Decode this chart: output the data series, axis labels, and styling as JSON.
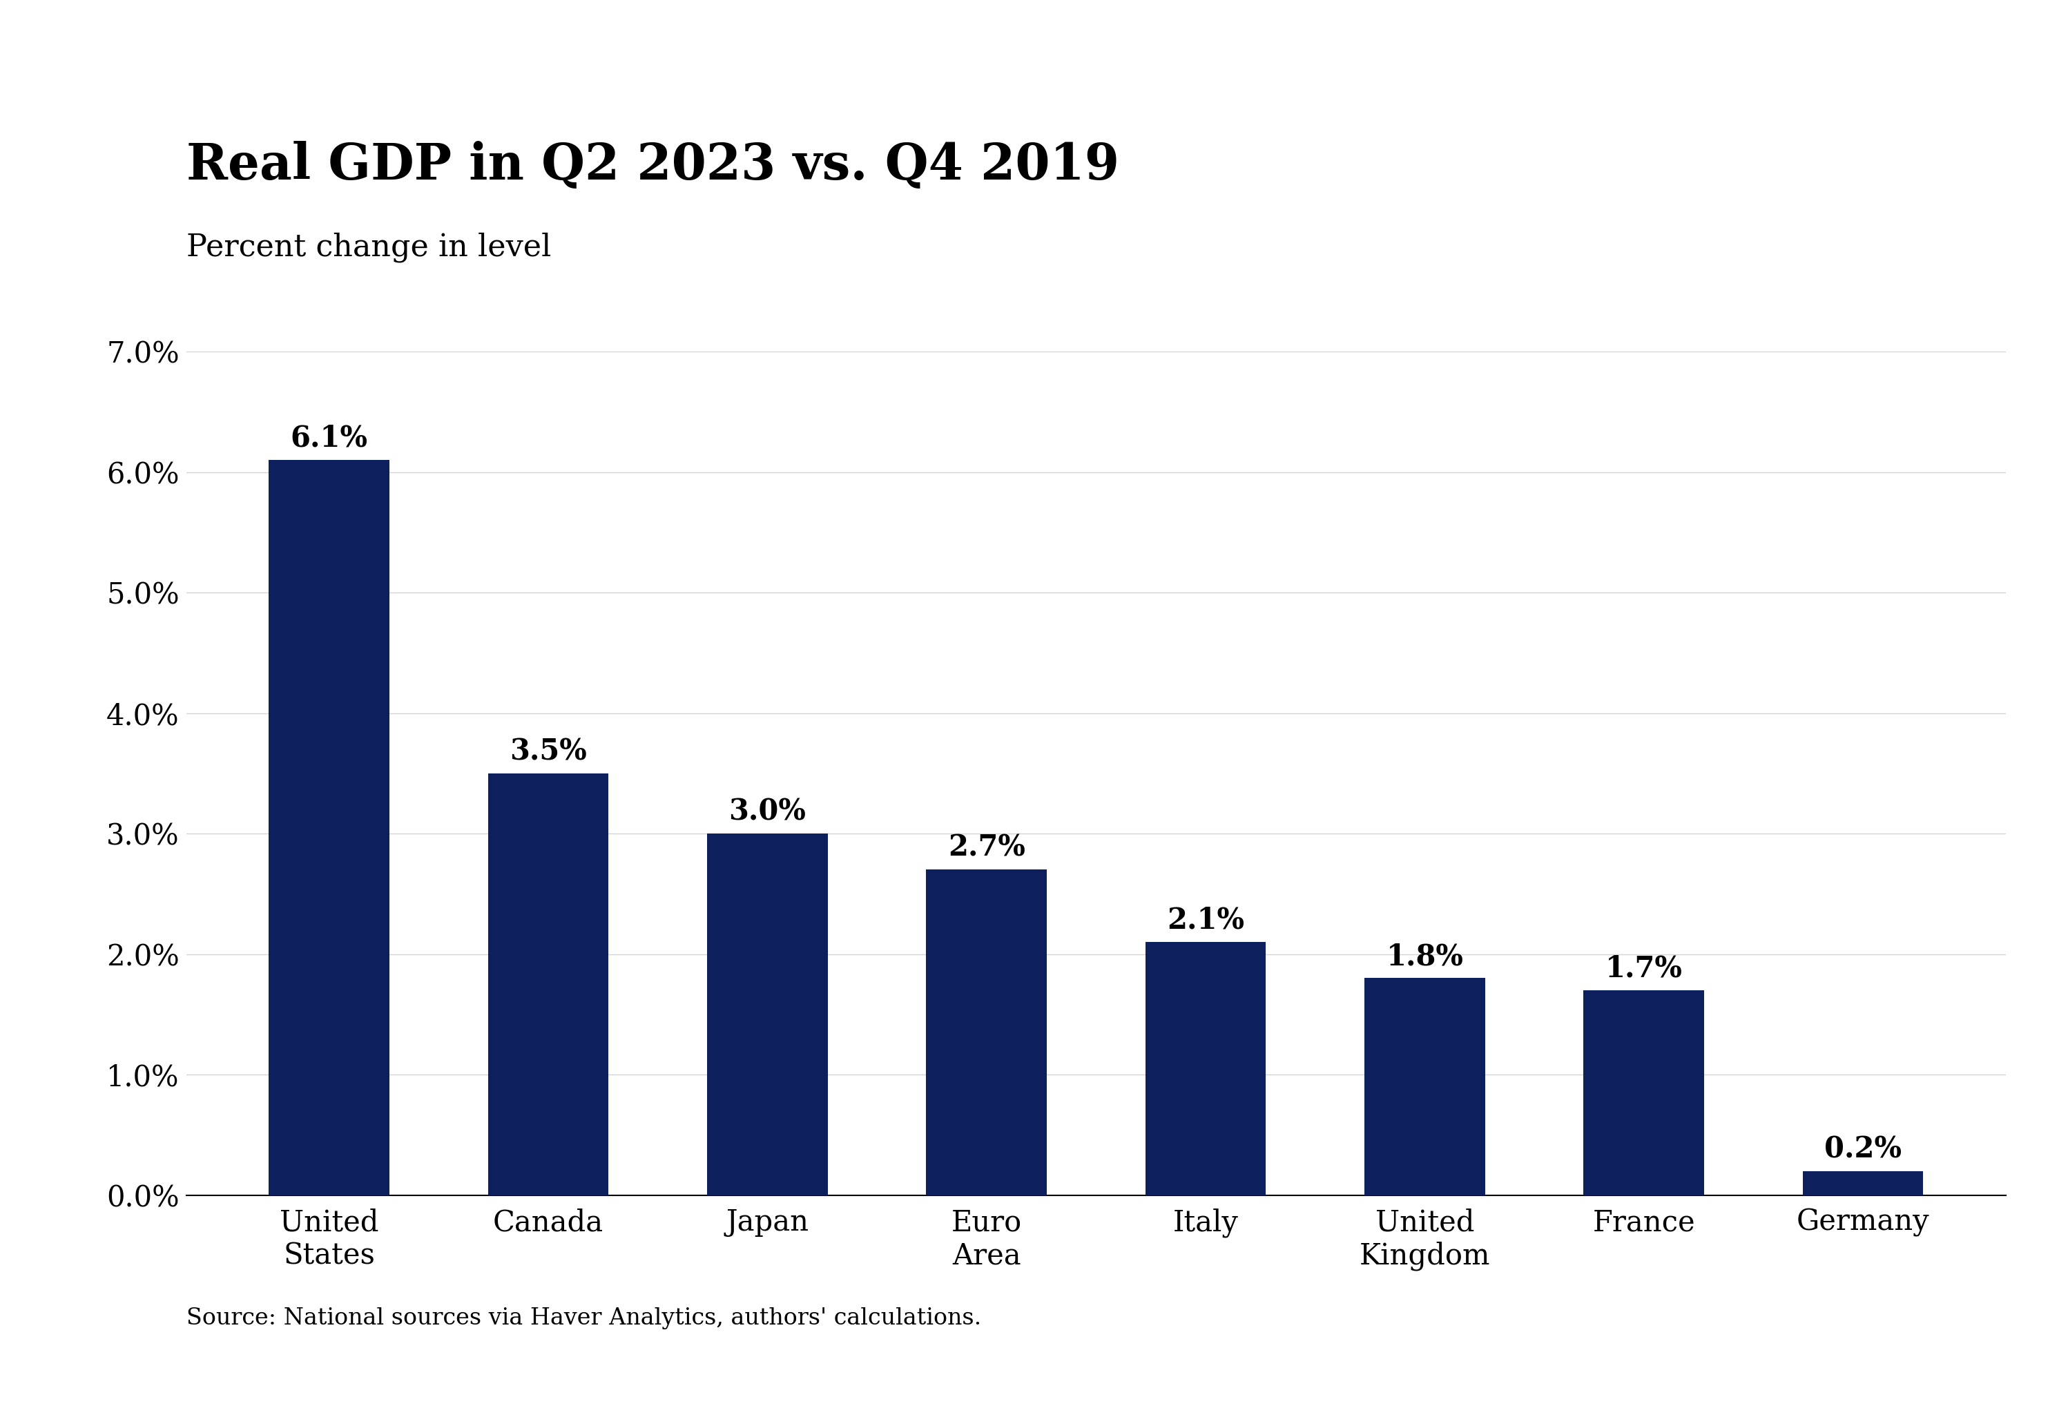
{
  "title": "Real GDP in Q2 2023 vs. Q4 2019",
  "subtitle": "Percent change in level",
  "source": "Source: National sources via Haver Analytics, authors' calculations.",
  "categories": [
    "United\nStates",
    "Canada",
    "Japan",
    "Euro\nArea",
    "Italy",
    "United\nKingdom",
    "France",
    "Germany"
  ],
  "values": [
    6.1,
    3.5,
    3.0,
    2.7,
    2.1,
    1.8,
    1.7,
    0.2
  ],
  "bar_color": "#0d1f5c",
  "background_color": "#ffffff",
  "ylim": [
    0,
    7.0
  ],
  "yticks": [
    0.0,
    1.0,
    2.0,
    3.0,
    4.0,
    5.0,
    6.0,
    7.0
  ],
  "title_fontsize": 52,
  "subtitle_fontsize": 32,
  "tick_fontsize": 30,
  "source_fontsize": 24,
  "bar_label_fontsize": 30,
  "bar_width": 0.55
}
